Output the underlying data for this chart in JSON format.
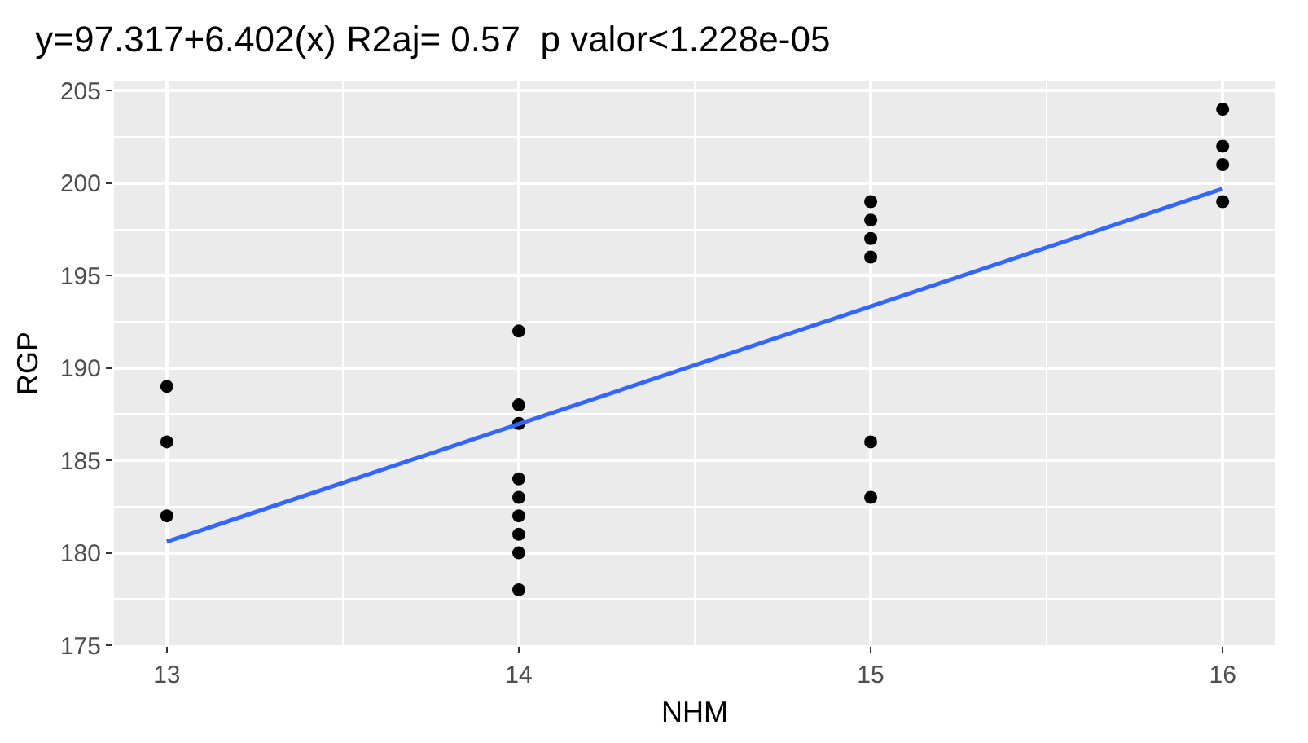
{
  "chart_data": {
    "type": "scatter",
    "title": "y=97.317+6.402(x) R2aj= 0.57  p valor<1.228e-05",
    "xlabel": "NHM",
    "ylabel": "RGP",
    "series": [
      {
        "color": "#000000",
        "marker": "circle",
        "x": [
          13,
          13,
          13,
          14,
          14,
          14,
          14,
          14,
          14,
          14,
          14,
          14,
          15,
          15,
          15,
          15,
          15,
          15,
          16,
          16,
          16,
          16
        ],
        "values": [
          189,
          186,
          182,
          192,
          188,
          187,
          184,
          183,
          182,
          181,
          180,
          178,
          199,
          198,
          197,
          196,
          186,
          183,
          204,
          202,
          201,
          199
        ]
      },
      {
        "type": "line",
        "color": "#3366ff",
        "marker": "none",
        "x": [
          13,
          16
        ],
        "values": [
          180.6,
          199.7
        ]
      }
    ],
    "xlim": [
      12.85,
      16.15
    ],
    "ylim": [
      175,
      205.5
    ],
    "xticks": [
      13,
      14,
      15,
      16
    ],
    "yticks": [
      175,
      180,
      185,
      190,
      195,
      200,
      205
    ],
    "grid": true
  }
}
